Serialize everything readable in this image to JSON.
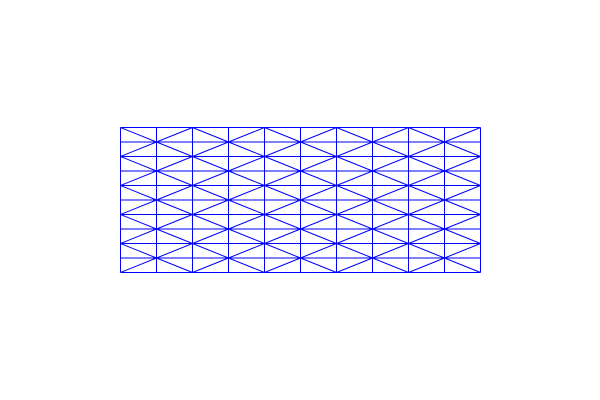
{
  "mesh": {
    "columns": 10,
    "rows": 10,
    "diagonal_pattern": "alternating",
    "line_color": "#0000ff",
    "background_color": "#ffffff",
    "axes_visible": false,
    "grid_visible": false
  }
}
